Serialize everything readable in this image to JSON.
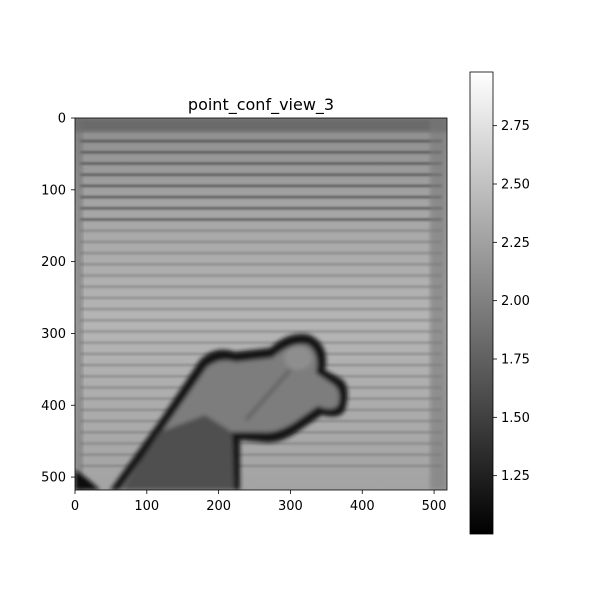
{
  "chart_data": {
    "type": "heatmap",
    "title": "point_conf_view_3",
    "xlabel": "",
    "ylabel": "",
    "colormap": "gray",
    "image_size": [
      518,
      518
    ],
    "x_ticks": [
      0,
      100,
      200,
      300,
      400,
      500
    ],
    "y_ticks": [
      0,
      100,
      200,
      300,
      400,
      500
    ],
    "xlim": [
      0,
      518
    ],
    "ylim": [
      518,
      0
    ],
    "colorbar": {
      "range": [
        1.0,
        2.98
      ],
      "ticks": [
        1.25,
        1.5,
        1.75,
        2.0,
        2.25,
        2.5,
        2.75
      ],
      "tick_labels": [
        "1.25",
        "1.50",
        "1.75",
        "2.00",
        "2.25",
        "2.50",
        "2.75"
      ]
    },
    "regions": [
      {
        "name": "striped background",
        "value_range": [
          2.2,
          2.7
        ]
      },
      {
        "name": "hand outline",
        "value_range": [
          1.0,
          1.2
        ]
      },
      {
        "name": "hand interior",
        "value_range": [
          1.6,
          2.0
        ]
      },
      {
        "name": "forearm",
        "value_range": [
          1.4,
          1.6
        ]
      },
      {
        "name": "top edge",
        "value_range": [
          1.5,
          1.9
        ]
      }
    ]
  },
  "colors": {
    "background": "#ffffff",
    "axis": "#000000"
  }
}
